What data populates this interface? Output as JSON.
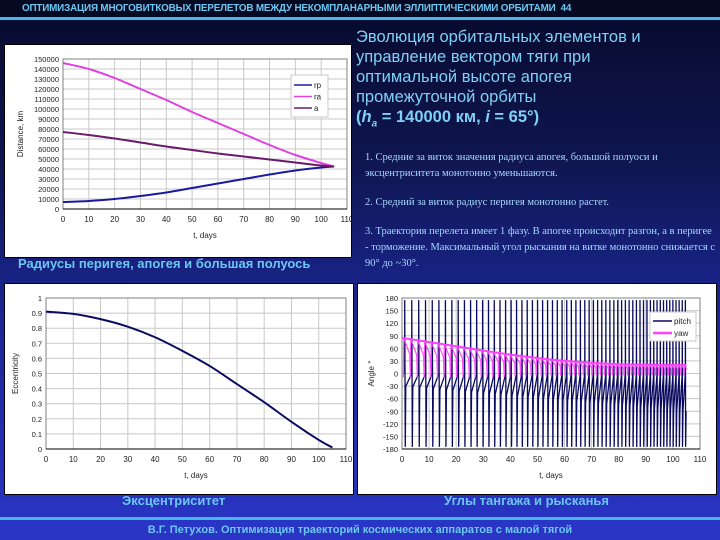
{
  "header": {
    "title": "ОПТИМИЗАЦИЯ МНОГОВИТКОВЫХ ПЕРЕЛЕТОВ МЕЖДУ НЕКОМПЛАНАРНЫМИ ЭЛЛИПТИЧЕСКИМИ ОРБИТАМИ",
    "slide_number": "44"
  },
  "heading": {
    "line1": "Эволюция орбитальных элементов и",
    "line2": "управление вектором тяги при",
    "line3": "оптимальной высоте апогея",
    "line4": "промежуточной орбиты",
    "line5_prefix": "(",
    "line5_h": "h",
    "line5_sub": "a",
    "line5_mid": " = 140000 км, ",
    "line5_i": "i",
    "line5_end": " = 65°)"
  },
  "notes": [
    "1. Средние за виток значения радиуса апогея, большой полуоси и эксцентриситета монотонно уменьшаются.",
    "2. Средний за виток радиус перигея монотонно растет.",
    "3. Траектория перелета имеет 1 фазу. В апогее происходит разгон, а в перигее - торможение. Максимальный угол рыскания на витке монотонно снижается с 90° до ~30°."
  ],
  "captions": {
    "radii": "Радиусы перигея, апогея и большая полуось",
    "ecc": "Эксцентриситет",
    "angles": "Углы тангажа и рысканья"
  },
  "footer": {
    "text": "В.Г. Петухов. Оптимизация траекторий космических аппаратов с малой тягой"
  },
  "colors": {
    "background_top": "#070a2c",
    "background_bottom": "#2a35c6",
    "accent": "#45b8ea",
    "title_text": "#6cc6f2",
    "rp": "#1a1aa0",
    "ra": "#e040e0",
    "a": "#6a1a6a",
    "ecc": "#0a0a60",
    "pitch": "#0a0a60",
    "yaw": "#ff40ff"
  },
  "chart_data": [
    {
      "type": "line",
      "title": "Радиусы перигея, апогея и большая полуось",
      "xlabel": "t, days",
      "ylabel": "Distance, km",
      "xlim": [
        0,
        110
      ],
      "ylim": [
        0,
        150000
      ],
      "xticks": [
        "0",
        "10",
        "20",
        "30",
        "40",
        "50",
        "60",
        "70",
        "80",
        "90",
        "100",
        "110"
      ],
      "yticks": [
        "0",
        "10000",
        "20000",
        "30000",
        "40000",
        "50000",
        "60000",
        "70000",
        "80000",
        "90000",
        "100000",
        "110000",
        "120000",
        "130000",
        "140000",
        "150000"
      ],
      "grid": true,
      "legend_position": "upper right",
      "x": [
        0,
        10,
        20,
        30,
        40,
        50,
        60,
        70,
        80,
        90,
        100,
        105
      ],
      "series": [
        {
          "name": "rp",
          "values": [
            7000,
            8000,
            10000,
            13000,
            16500,
            21000,
            25500,
            30000,
            34500,
            38500,
            41500,
            42500
          ]
        },
        {
          "name": "ra",
          "values": [
            146000,
            140000,
            131000,
            120000,
            109000,
            97000,
            86000,
            75000,
            64000,
            54000,
            46000,
            42500
          ]
        },
        {
          "name": "a",
          "values": [
            77000,
            74000,
            70500,
            66500,
            62500,
            59000,
            55500,
            52500,
            49500,
            46500,
            43500,
            42500
          ]
        }
      ]
    },
    {
      "type": "line",
      "title": "Эксцентриситет",
      "xlabel": "t, days",
      "ylabel": "Eccentricity",
      "xlim": [
        0,
        110
      ],
      "ylim": [
        0,
        1
      ],
      "xticks": [
        "0",
        "10",
        "20",
        "30",
        "40",
        "50",
        "60",
        "70",
        "80",
        "90",
        "100",
        "110"
      ],
      "yticks": [
        "0",
        "0.1",
        "0.2",
        "0.3",
        "0.4",
        "0.5",
        "0.6",
        "0.7",
        "0.8",
        "0.9",
        "1"
      ],
      "grid": true,
      "x": [
        0,
        10,
        20,
        30,
        40,
        50,
        60,
        70,
        80,
        90,
        100,
        105
      ],
      "series": [
        {
          "name": "eccentricity",
          "values": [
            0.91,
            0.895,
            0.86,
            0.81,
            0.74,
            0.65,
            0.55,
            0.43,
            0.31,
            0.18,
            0.06,
            0.01
          ]
        }
      ]
    },
    {
      "type": "line",
      "title": "Углы тангажа и рысканья",
      "xlabel": "t, days",
      "ylabel": "Angle °",
      "xlim": [
        0,
        110
      ],
      "ylim": [
        -180,
        180
      ],
      "xticks": [
        "0",
        "10",
        "20",
        "30",
        "40",
        "50",
        "60",
        "70",
        "80",
        "90",
        "100",
        "110"
      ],
      "yticks": [
        "-180",
        "-150",
        "-120",
        "-90",
        "-60",
        "-30",
        "0",
        "30",
        "60",
        "90",
        "120",
        "150",
        "180"
      ],
      "grid": true,
      "legend_position": "upper right",
      "series": [
        {
          "name": "pitch",
          "description": "oscillates between about -180 and 180 once per orbit revolution",
          "x": [
            0,
            105
          ],
          "amplitude": [
            180,
            180
          ]
        },
        {
          "name": "yaw",
          "description": "per-orbit maximum decreases monotonically",
          "x": [
            0,
            20,
            40,
            60,
            80,
            105
          ],
          "max_values": [
            85,
            65,
            45,
            30,
            22,
            20
          ],
          "min_values": [
            -10,
            -10,
            -8,
            -5,
            -5,
            -5
          ]
        }
      ]
    }
  ]
}
